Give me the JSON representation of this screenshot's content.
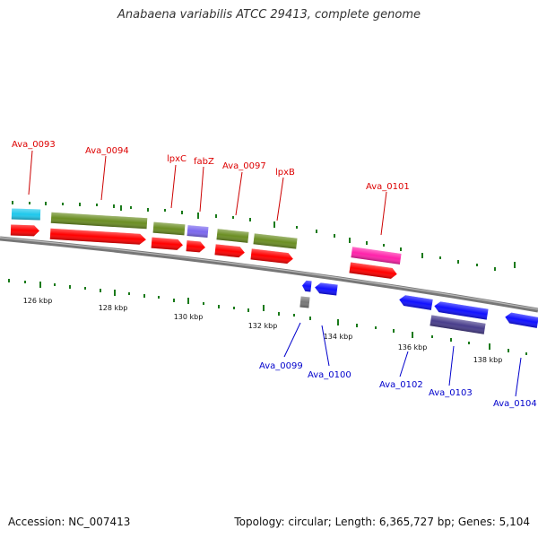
{
  "title": "Anabaena variabilis ATCC 29413, complete genome",
  "footer": {
    "accession": "Accession: NC_007413",
    "topology": "Topology: circular; Length: 6,365,727 bp; Genes: 5,104"
  },
  "colors": {
    "cds": "#ff0000",
    "gene_olive": "#6b8e23",
    "gene_cyan": "#1fc8ec",
    "gene_purple": "#7b68ee",
    "gene_magenta": "#ff22aa",
    "gene_blue": "#1010ff",
    "gene_slate": "#483d8b",
    "gene_gray": "#777777",
    "tick": "#1a7a1a",
    "backbone": "#888888",
    "label_forward": "#dd0000",
    "label_reverse": "#0000cc"
  },
  "scale": {
    "kbp_labels": [
      "126 kbp",
      "128 kbp",
      "130 kbp",
      "132 kbp",
      "134 kbp",
      "136 kbp",
      "138 kbp"
    ]
  },
  "genes": {
    "forward": [
      "Ava_0093",
      "Ava_0094",
      "lpxC",
      "fabZ",
      "Ava_0097",
      "lpxB",
      "Ava_0101"
    ],
    "reverse": [
      "Ava_0099",
      "Ava_0100",
      "Ava_0102",
      "Ava_0103",
      "Ava_0104"
    ]
  }
}
